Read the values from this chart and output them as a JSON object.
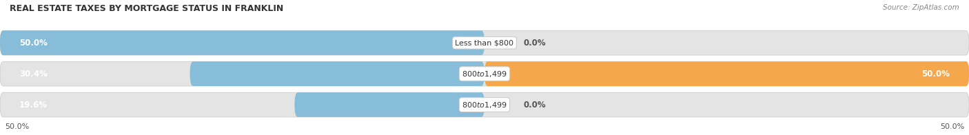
{
  "title": "REAL ESTATE TAXES BY MORTGAGE STATUS IN FRANKLIN",
  "source": "Source: ZipAtlas.com",
  "rows": [
    {
      "label": "Less than $800",
      "without_mortgage": 50.0,
      "with_mortgage": 0.0,
      "left_label": "50.0%",
      "right_label": "0.0%"
    },
    {
      "label": "$800 to $1,499",
      "without_mortgage": 30.4,
      "with_mortgage": 50.0,
      "left_label": "30.4%",
      "right_label": "50.0%"
    },
    {
      "label": "$800 to $1,499",
      "without_mortgage": 19.6,
      "with_mortgage": 0.0,
      "left_label": "19.6%",
      "right_label": "0.0%"
    }
  ],
  "color_without": "#87bdd8",
  "color_with": "#f5a84b",
  "color_track": "#e4e4e4",
  "color_track_border": "#d0d0d0",
  "xlim_left": -50.0,
  "xlim_right": 50.0,
  "bottom_left_label": "50.0%",
  "bottom_right_label": "50.0%"
}
